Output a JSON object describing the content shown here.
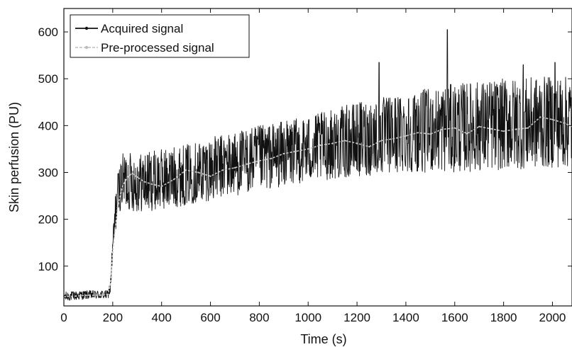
{
  "chart_data": {
    "type": "line",
    "xlabel": "Time (s)",
    "ylabel": "Skin perfusion (PU)",
    "xlim": [
      0,
      2080
    ],
    "ylim": [
      15,
      650
    ],
    "xticks": [
      0,
      200,
      400,
      600,
      800,
      1000,
      1200,
      1400,
      1600,
      1800,
      2000
    ],
    "yticks": [
      100,
      200,
      300,
      400,
      500,
      600
    ],
    "grid": false,
    "legend_position": "top-left",
    "series": [
      {
        "name": "Acquired signal",
        "style": "solid",
        "color": "#111111",
        "envelope": {
          "x": [
            0,
            100,
            180,
            190,
            200,
            210,
            220,
            240,
            260,
            300,
            400,
            500,
            600,
            800,
            1000,
            1200,
            1400,
            1600,
            1800,
            2000,
            2080
          ],
          "upper": [
            45,
            48,
            48,
            70,
            170,
            250,
            300,
            340,
            345,
            340,
            350,
            360,
            375,
            400,
            420,
            450,
            470,
            490,
            500,
            505,
            505
          ],
          "lower": [
            25,
            30,
            30,
            40,
            100,
            160,
            210,
            225,
            220,
            215,
            220,
            230,
            240,
            260,
            280,
            290,
            300,
            300,
            305,
            310,
            310
          ]
        },
        "peaks": [
          {
            "x": 1570,
            "y": 605
          },
          {
            "x": 1290,
            "y": 535
          },
          {
            "x": 1880,
            "y": 530
          },
          {
            "x": 2010,
            "y": 535
          }
        ]
      },
      {
        "name": "Pre-processed signal",
        "style": "dashed",
        "color": "#c8c8c8",
        "x": [
          0,
          50,
          100,
          150,
          180,
          190,
          200,
          210,
          220,
          240,
          260,
          280,
          300,
          330,
          360,
          400,
          450,
          500,
          550,
          600,
          650,
          700,
          750,
          800,
          850,
          900,
          950,
          1000,
          1050,
          1100,
          1150,
          1200,
          1250,
          1300,
          1350,
          1400,
          1450,
          1500,
          1550,
          1600,
          1650,
          1700,
          1750,
          1800,
          1850,
          1900,
          1950,
          2000,
          2050,
          2080
        ],
        "y": [
          35,
          36,
          38,
          38,
          40,
          60,
          130,
          180,
          225,
          270,
          290,
          298,
          290,
          280,
          275,
          270,
          285,
          305,
          300,
          292,
          305,
          310,
          318,
          325,
          330,
          340,
          345,
          350,
          358,
          362,
          368,
          362,
          355,
          368,
          372,
          378,
          385,
          382,
          392,
          395,
          383,
          398,
          393,
          388,
          392,
          395,
          418,
          413,
          405,
          398
        ]
      }
    ]
  }
}
